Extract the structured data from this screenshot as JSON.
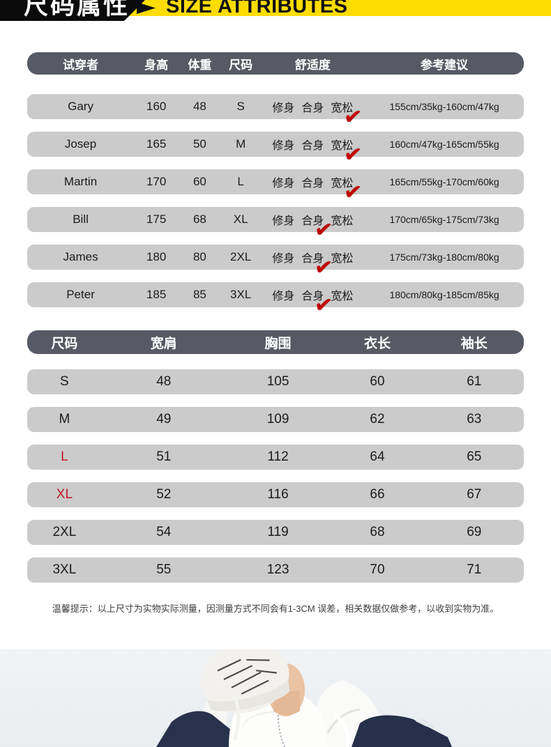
{
  "banner": {
    "title_cn": "尺码属性",
    "title_en": "SIZE ATTRIBUTES",
    "colors": {
      "yellow": "#ffdc00",
      "black": "#0b0b0b",
      "header_slate": "#575a64",
      "row_gray": "#cbcbcb",
      "check_red": "#c00000",
      "size_red": "#c01527"
    }
  },
  "icons": {
    "check": "✔"
  },
  "fit_table": {
    "columns": [
      "试穿者",
      "身高",
      "体重",
      "尺码",
      "舒适度",
      "参考建议"
    ],
    "comfort_options": [
      "修身",
      "合身",
      "宽松"
    ],
    "rows": [
      {
        "name": "Gary",
        "height": "160",
        "weight": "48",
        "size": "S",
        "checked_index": 2,
        "suggestion": "155cm/35kg-160cm/47kg"
      },
      {
        "name": "Josep",
        "height": "165",
        "weight": "50",
        "size": "M",
        "checked_index": 2,
        "suggestion": "160cm/47kg-165cm/55kg"
      },
      {
        "name": "Martin",
        "height": "170",
        "weight": "60",
        "size": "L",
        "checked_index": 2,
        "suggestion": "165cm/55kg-170cm/60kg"
      },
      {
        "name": "Bill",
        "height": "175",
        "weight": "68",
        "size": "XL",
        "checked_index": 1,
        "suggestion": "170cm/65kg-175cm/73kg"
      },
      {
        "name": "James",
        "height": "180",
        "weight": "80",
        "size": "2XL",
        "checked_index": 1,
        "suggestion": "175cm/73kg-180cm/80kg"
      },
      {
        "name": "Peter",
        "height": "185",
        "weight": "85",
        "size": "3XL",
        "checked_index": 1,
        "suggestion": "180cm/80kg-185cm/85kg"
      }
    ]
  },
  "size_table": {
    "columns": [
      "尺码",
      "宽肩",
      "胸围",
      "衣长",
      "袖长"
    ],
    "rows": [
      {
        "size": "S",
        "shoulder": "48",
        "chest": "105",
        "length": "60",
        "sleeve": "61",
        "highlight": false
      },
      {
        "size": "M",
        "shoulder": "49",
        "chest": "109",
        "length": "62",
        "sleeve": "63",
        "highlight": false
      },
      {
        "size": "L",
        "shoulder": "51",
        "chest": "112",
        "length": "64",
        "sleeve": "65",
        "highlight": true
      },
      {
        "size": "XL",
        "shoulder": "52",
        "chest": "116",
        "length": "66",
        "sleeve": "67",
        "highlight": true
      },
      {
        "size": "2XL",
        "shoulder": "54",
        "chest": "119",
        "length": "68",
        "sleeve": "69",
        "highlight": false
      },
      {
        "size": "3XL",
        "shoulder": "55",
        "chest": "123",
        "length": "70",
        "sleeve": "71",
        "highlight": false
      }
    ]
  },
  "notice": "温馨提示：以上尺寸为实物实际测量，因测量方式不同会有1-3CM 误差，相关数据仅做参考，以收到实物为准。"
}
